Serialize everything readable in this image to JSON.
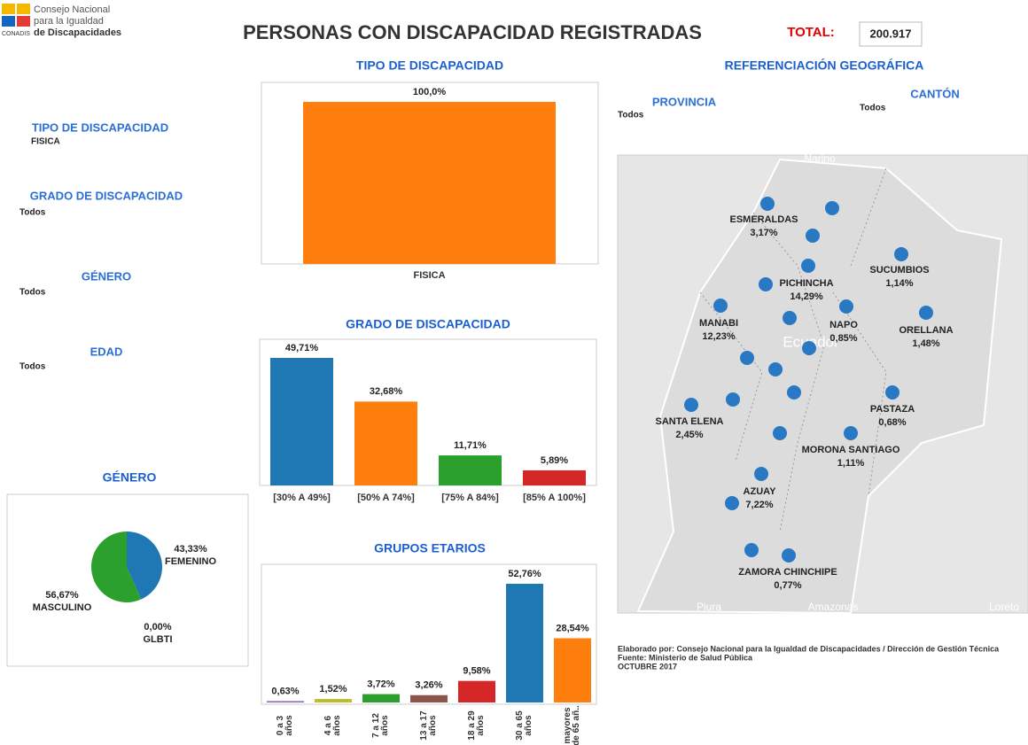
{
  "header": {
    "org_line1": "Consejo Nacional",
    "org_line2": "para la Igualdad",
    "org_line3": "de Discapacidades",
    "org_abbr": "CONADIS",
    "title": "PERSONAS CON DISCAPACIDAD REGISTRADAS",
    "total_label": "TOTAL:",
    "total_value": "200.917"
  },
  "filters": [
    {
      "label": "TIPO DE DISCAPACIDAD",
      "value": "FISICA"
    },
    {
      "label": "GRADO DE DISCAPACIDAD",
      "value": "Todos"
    },
    {
      "label": "GÉNERO",
      "value": "Todos"
    },
    {
      "label": "EDAD",
      "value": "Todos"
    }
  ],
  "chart_data": [
    {
      "type": "bar",
      "title": "TIPO DE DISCAPACIDAD",
      "categories": [
        "FISICA"
      ],
      "values": [
        100
      ],
      "value_labels": [
        "100,0%"
      ],
      "colors": [
        "#ff7f0e"
      ]
    },
    {
      "type": "bar",
      "title": "GRADO DE DISCAPACIDAD",
      "categories": [
        "[30% A 49%]",
        "[50% A 74%]",
        "[75% A 84%]",
        "[85% A 100%]"
      ],
      "values": [
        49.71,
        32.68,
        11.71,
        5.89
      ],
      "value_labels": [
        "49,71%",
        "32,68%",
        "11,71%",
        "5,89%"
      ],
      "colors": [
        "#1f77b4",
        "#ff7f0e",
        "#2ca02c",
        "#d62728"
      ]
    },
    {
      "type": "bar",
      "title": "GRUPOS ETARIOS",
      "categories": [
        "0 a 3 años",
        "4 a 6 años",
        "7 a 12 años",
        "13 a 17 años",
        "18 a 29 años",
        "30 a 65 años",
        "mayores de 65 añ.."
      ],
      "values": [
        0.63,
        1.52,
        3.72,
        3.26,
        9.58,
        52.76,
        28.54
      ],
      "value_labels": [
        "0,63%",
        "1,52%",
        "3,72%",
        "3,26%",
        "9,58%",
        "52,76%",
        "28,54%"
      ],
      "colors": [
        "#9467bd",
        "#bcbd22",
        "#2ca02c",
        "#8c564b",
        "#d62728",
        "#1f77b4",
        "#ff7f0e"
      ]
    },
    {
      "type": "pie",
      "title": "GÉNERO",
      "categories": [
        "FEMENINO",
        "MASCULINO",
        "GLBTI"
      ],
      "values": [
        43.33,
        56.67,
        0
      ],
      "value_labels": [
        "43,33%",
        "56,67%",
        "0,00%"
      ],
      "colors": [
        "#1f77b4",
        "#2ca02c",
        "#d62728"
      ]
    }
  ],
  "map": {
    "title": "REFERENCIACIÓN GEOGRÁFICA",
    "province_label": "PROVINCIA",
    "province_value": "Todos",
    "canton_label": "CANTÓN",
    "canton_value": "Todos",
    "place_labels": [
      "Narino",
      "Ecuador",
      "Piura",
      "Amazonas",
      "Loreto"
    ],
    "points": [
      {
        "name": "ESMERALDAS",
        "value_label": "3,17%"
      },
      {
        "name": "PICHINCHA",
        "value_label": "14,29%"
      },
      {
        "name": "SUCUMBIOS",
        "value_label": "1,14%"
      },
      {
        "name": "MANABI",
        "value_label": "12,23%"
      },
      {
        "name": "NAPO",
        "value_label": "0,85%"
      },
      {
        "name": "ORELLANA",
        "value_label": "1,48%"
      },
      {
        "name": "SANTA ELENA",
        "value_label": "2,45%"
      },
      {
        "name": "PASTAZA",
        "value_label": "0,68%"
      },
      {
        "name": "MORONA SANTIAGO",
        "value_label": "1,11%"
      },
      {
        "name": "AZUAY",
        "value_label": "7,22%"
      },
      {
        "name": "ZAMORA CHINCHIPE",
        "value_label": "0,77%"
      }
    ]
  },
  "footer": [
    "Elaborado por: Consejo Nacional para la Igualdad de Discapacidades  / Dirección de Gestión Técnica",
    "Fuente: Ministerio de Salud Pública",
    "OCTUBRE 2017"
  ]
}
